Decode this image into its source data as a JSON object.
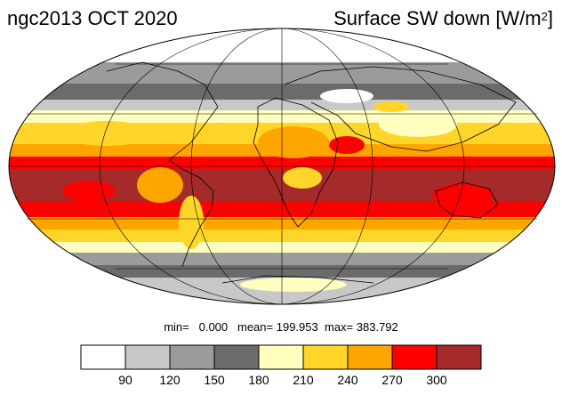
{
  "header": {
    "left_title": "ngc2013 OCT 2020",
    "right_title_main": "Surface SW down [W/m",
    "right_title_sup": "2",
    "right_title_close": "]"
  },
  "stats": {
    "min_label": "min=",
    "min_value": "0.000",
    "mean_label": "mean=",
    "mean_value": "199.953",
    "max_label": "max=",
    "max_value": "383.792"
  },
  "colorbar": {
    "colors": [
      "#ffffff",
      "#c8c8c8",
      "#9b9b9b",
      "#6b6b6b",
      "#ffffc0",
      "#ffd52a",
      "#ffa500",
      "#ff0000",
      "#a52a2a"
    ],
    "tick_labels": [
      "90",
      "120",
      "150",
      "180",
      "210",
      "240",
      "270",
      "300"
    ]
  },
  "map_legend_colors": {
    "ocean_tropics": "#a52a2a",
    "band_red": "#ff0000",
    "band_orange": "#ffa500",
    "band_yellow": "#ffd52a",
    "band_pale": "#ffffc0",
    "grey_dark": "#6b6b6b",
    "grey_mid": "#9b9b9b",
    "grey_light": "#c8c8c8",
    "polar_white": "#ffffff"
  }
}
